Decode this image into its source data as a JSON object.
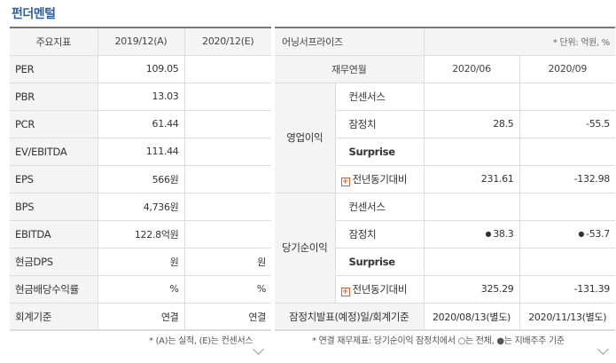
{
  "title": "펀더멘털",
  "left": {
    "headers": [
      "주요지표",
      "2019/12(A)",
      "2020/12(E)"
    ],
    "rows": [
      {
        "label": "PER",
        "a": "109.05",
        "e": ""
      },
      {
        "label": "PBR",
        "a": "13.03",
        "e": ""
      },
      {
        "label": "PCR",
        "a": "61.44",
        "e": ""
      },
      {
        "label": "EV/EBITDA",
        "a": "111.44",
        "e": ""
      },
      {
        "label": "EPS",
        "a": "566원",
        "e": ""
      },
      {
        "label": "BPS",
        "a": "4,736원",
        "e": ""
      },
      {
        "label": "EBITDA",
        "a": "122.8억원",
        "e": ""
      },
      {
        "label": "현금DPS",
        "a": "원",
        "e": "원"
      },
      {
        "label": "현금배당수익률",
        "a": "%",
        "e": "%"
      },
      {
        "label": "회계기준",
        "a": "연결",
        "e": "연결"
      }
    ],
    "note": "* (A)는 실적, (E)는 컨센서스"
  },
  "right": {
    "title": "어닝서프라이즈",
    "unit": "* 단위: 억원, %",
    "headers": [
      "재무연월",
      "2020/06",
      "2020/09"
    ],
    "groups": [
      {
        "name": "영업이익",
        "rows": [
          {
            "label": "컨센서스",
            "v1": "",
            "v2": ""
          },
          {
            "label": "잠정치",
            "v1": "28.5",
            "v2": "-55.5"
          },
          {
            "label": "Surprise",
            "v1": "",
            "v2": ""
          },
          {
            "label": "전년동기대비",
            "v1": "231.61",
            "v2": "-132.98"
          }
        ]
      },
      {
        "name": "당기순이익",
        "rows": [
          {
            "label": "컨센서스",
            "v1": "",
            "v2": ""
          },
          {
            "label": "잠정치",
            "v1": "38.3",
            "v2": "-53.7"
          },
          {
            "label": "Surprise",
            "v1": "",
            "v2": ""
          },
          {
            "label": "전년동기대비",
            "v1": "325.29",
            "v2": "-131.39"
          }
        ]
      }
    ],
    "footer": {
      "label": "잠정치발표(예정)일/회계기준",
      "v1": "2020/08/13(별도)",
      "v2": "2020/11/13(별도)"
    },
    "dot_symbol": "●",
    "plus_symbol": "+",
    "note": "* 연결 재무제표: 당기순이익 잠정치에서 ○는 전체, ●는 지배주주 기준"
  }
}
